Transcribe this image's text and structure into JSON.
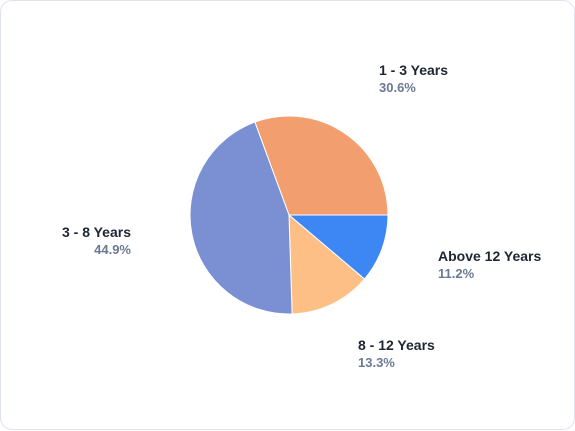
{
  "chart_data": {
    "type": "pie",
    "categories": [
      "1 - 3 Years",
      "Above 12 Years",
      "8 - 12 Years",
      "3 - 8 Years"
    ],
    "values": [
      30.6,
      11.2,
      13.3,
      44.9
    ],
    "labels": [
      "30.6%",
      "11.2%",
      "13.3%",
      "44.9%"
    ],
    "colors": [
      "#f29e6e",
      "#3d87f5",
      "#fdbf86",
      "#7b8fd3"
    ],
    "title": "",
    "legend": "none"
  }
}
